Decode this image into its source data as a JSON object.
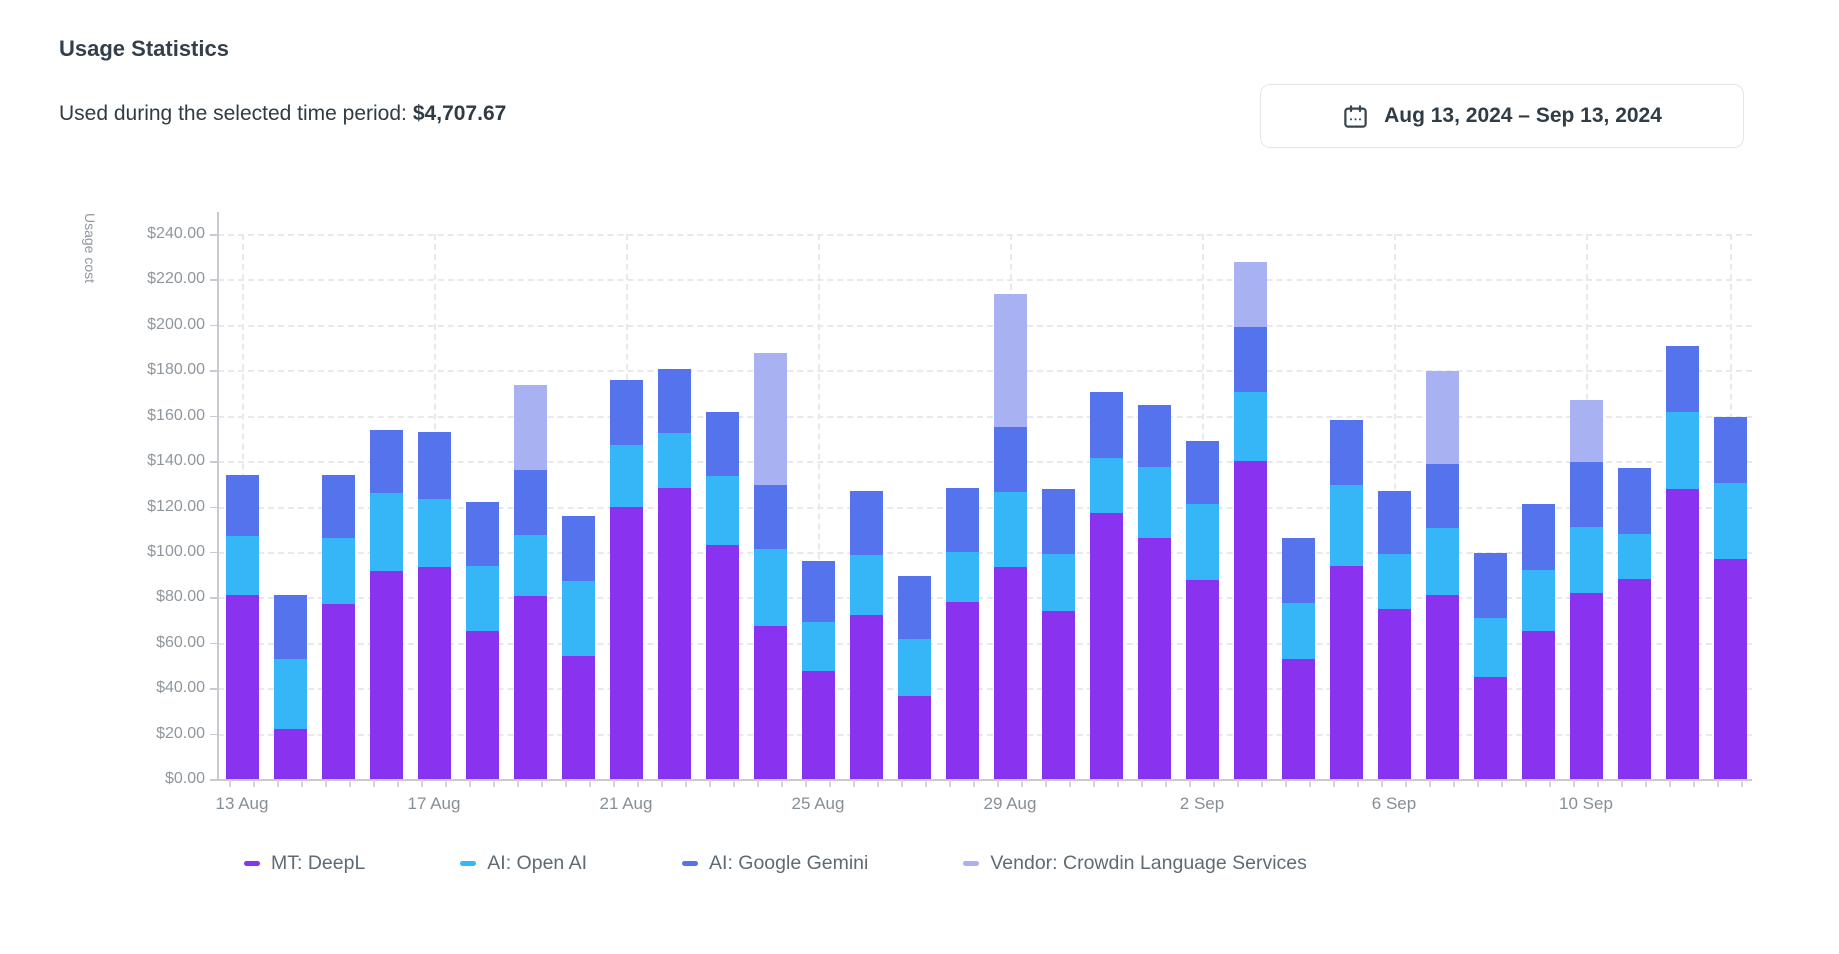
{
  "header": {
    "title": "Usage Statistics",
    "summary_label": "Used during the selected time period:",
    "summary_value": "$4,707.67"
  },
  "date_picker": {
    "icon": "calendar-icon",
    "range_label": "Aug 13, 2024 – Sep 13, 2024"
  },
  "chart_data": {
    "type": "bar",
    "stacked": true,
    "ylabel": "Usage cost",
    "ylim": [
      0,
      240
    ],
    "ytick_step": 20,
    "ytick_labels": [
      "$0.00",
      "$20.00",
      "$40.00",
      "$60.00",
      "$80.00",
      "$100.00",
      "$120.00",
      "$140.00",
      "$160.00",
      "$180.00",
      "$200.00",
      "$220.00",
      "$240.00"
    ],
    "grid": true,
    "legend_position": "bottom",
    "categories": [
      "13 Aug",
      "14 Aug",
      "15 Aug",
      "16 Aug",
      "17 Aug",
      "18 Aug",
      "19 Aug",
      "20 Aug",
      "21 Aug",
      "22 Aug",
      "23 Aug",
      "24 Aug",
      "25 Aug",
      "26 Aug",
      "27 Aug",
      "28 Aug",
      "29 Aug",
      "30 Aug",
      "31 Aug",
      "1 Sep",
      "2 Sep",
      "3 Sep",
      "4 Sep",
      "5 Sep",
      "6 Sep",
      "7 Sep",
      "8 Sep",
      "9 Sep",
      "10 Sep",
      "11 Sep",
      "12 Sep",
      "13 Sep"
    ],
    "x_tick_labels": [
      "13 Aug",
      "17 Aug",
      "21 Aug",
      "25 Aug",
      "29 Aug",
      "2 Sep",
      "6 Sep",
      "10 Sep"
    ],
    "x_tick_every": 4,
    "series": [
      {
        "name": "MT: DeepL",
        "color": "#8933f1",
        "values": [
          81,
          22,
          77,
          91.5,
          93.5,
          65,
          80.5,
          54,
          120,
          128,
          103,
          67.5,
          47.5,
          72,
          36.5,
          78,
          93.5,
          74,
          117,
          106,
          87.5,
          140,
          53,
          94,
          75,
          81,
          45,
          65,
          82,
          88,
          127.5,
          97
        ]
      },
      {
        "name": "AI: Open AI",
        "color": "#36b5f7",
        "values": [
          26,
          31,
          29,
          34.5,
          30,
          29,
          27,
          33,
          27,
          24.5,
          30.5,
          34,
          21.5,
          26.5,
          25,
          22,
          33,
          25,
          24.5,
          31.5,
          33.5,
          30.5,
          24.5,
          35.5,
          24,
          29.5,
          26,
          27,
          29,
          20,
          34,
          33.5
        ]
      },
      {
        "name": "AI: Google Gemini",
        "color": "#5473ec",
        "values": [
          27,
          28,
          28,
          27.5,
          29.5,
          28,
          28.5,
          29,
          28.5,
          28,
          28,
          28,
          27,
          28.5,
          28,
          28,
          28.5,
          28.5,
          29,
          27,
          28,
          28.5,
          28.5,
          28.5,
          28,
          28,
          28.5,
          29,
          28.5,
          29,
          29,
          29
        ]
      },
      {
        "name": "Vendor: Crowdin Language Services",
        "color": "#a8b1f1",
        "values": [
          0,
          0,
          0,
          0,
          0,
          0,
          37.5,
          0,
          0,
          0,
          0,
          58,
          0,
          0,
          0,
          0,
          58.5,
          0,
          0,
          0,
          0,
          28.5,
          0,
          0,
          0,
          41,
          0,
          0,
          27.5,
          0,
          0,
          0
        ]
      }
    ]
  }
}
